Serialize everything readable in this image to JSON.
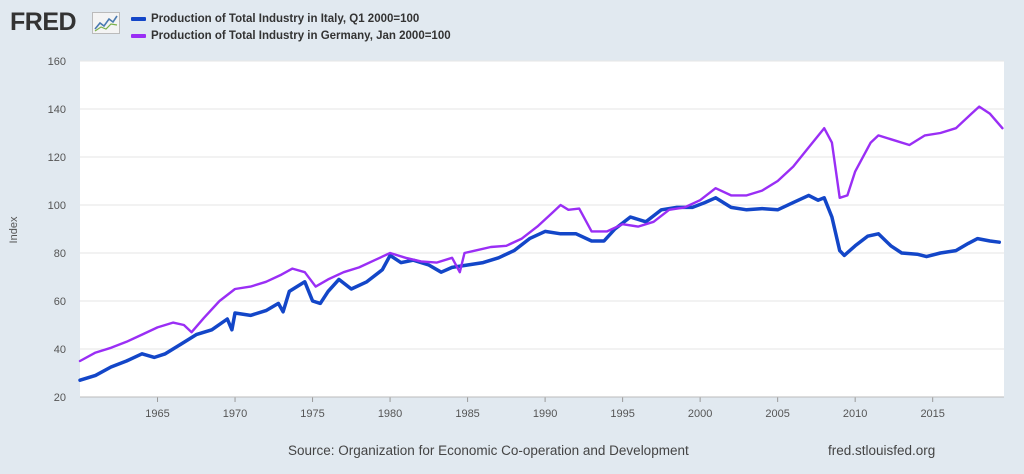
{
  "header": {
    "logo_text": "FRED",
    "logo_icon": "line-chart-icon"
  },
  "footer": {
    "source": "Source: Organization for Economic Co-operation and Development",
    "url": "fred.stlouisfed.org"
  },
  "colors": {
    "italy": "#1346c8",
    "germany": "#9a2ef5",
    "background": "#e1e9f0",
    "plot_bg": "#ffffff"
  },
  "chart_data": {
    "type": "line",
    "title": "",
    "xlabel": "",
    "ylabel": "Index",
    "xlim": [
      1960,
      2019.6
    ],
    "ylim": [
      20,
      160
    ],
    "y_ticks": [
      20,
      40,
      60,
      80,
      100,
      120,
      140,
      160
    ],
    "x_ticks": [
      1965,
      1970,
      1975,
      1980,
      1985,
      1990,
      1995,
      2000,
      2005,
      2010,
      2015
    ],
    "grid": "horizontal",
    "legend": "top-left",
    "series": [
      {
        "name": "Production of Total Industry in Italy, Q1 2000=100",
        "color": "#1346c8",
        "points": [
          [
            1960.0,
            27
          ],
          [
            1961.0,
            29
          ],
          [
            1962.0,
            32.5
          ],
          [
            1963.0,
            35
          ],
          [
            1964.0,
            38
          ],
          [
            1964.8,
            36.5
          ],
          [
            1965.5,
            38
          ],
          [
            1966.5,
            42
          ],
          [
            1967.5,
            46
          ],
          [
            1968.5,
            48
          ],
          [
            1969.5,
            52.5
          ],
          [
            1969.8,
            48
          ],
          [
            1970.0,
            55
          ],
          [
            1971.0,
            54
          ],
          [
            1972.0,
            56
          ],
          [
            1972.8,
            59
          ],
          [
            1973.1,
            55.5
          ],
          [
            1973.5,
            64
          ],
          [
            1974.5,
            68
          ],
          [
            1975.0,
            60
          ],
          [
            1975.5,
            59
          ],
          [
            1976.0,
            64
          ],
          [
            1976.7,
            69
          ],
          [
            1977.5,
            65
          ],
          [
            1978.5,
            68
          ],
          [
            1979.5,
            73
          ],
          [
            1980.0,
            79
          ],
          [
            1980.7,
            76
          ],
          [
            1981.5,
            77
          ],
          [
            1982.5,
            75
          ],
          [
            1983.3,
            72
          ],
          [
            1984.0,
            74
          ],
          [
            1985.0,
            75
          ],
          [
            1986.0,
            76
          ],
          [
            1987.0,
            78
          ],
          [
            1988.0,
            81
          ],
          [
            1989.0,
            86
          ],
          [
            1990.0,
            89
          ],
          [
            1991.0,
            88
          ],
          [
            1992.0,
            88
          ],
          [
            1993.0,
            85
          ],
          [
            1993.8,
            85
          ],
          [
            1994.5,
            90
          ],
          [
            1995.5,
            95
          ],
          [
            1996.5,
            93
          ],
          [
            1997.5,
            98
          ],
          [
            1998.5,
            99
          ],
          [
            1999.5,
            99
          ],
          [
            2000.3,
            101
          ],
          [
            2001.0,
            103
          ],
          [
            2002.0,
            99
          ],
          [
            2003.0,
            98
          ],
          [
            2004.0,
            98.5
          ],
          [
            2005.0,
            98
          ],
          [
            2006.0,
            101
          ],
          [
            2007.0,
            104
          ],
          [
            2007.6,
            102
          ],
          [
            2008.0,
            103
          ],
          [
            2008.5,
            95
          ],
          [
            2009.0,
            81
          ],
          [
            2009.3,
            79
          ],
          [
            2010.0,
            83
          ],
          [
            2010.8,
            87
          ],
          [
            2011.5,
            88
          ],
          [
            2012.3,
            83
          ],
          [
            2013.0,
            80
          ],
          [
            2014.0,
            79.5
          ],
          [
            2014.6,
            78.5
          ],
          [
            2015.5,
            80
          ],
          [
            2016.5,
            81
          ],
          [
            2017.3,
            84
          ],
          [
            2017.9,
            86
          ],
          [
            2018.7,
            85
          ],
          [
            2019.3,
            84.5
          ]
        ]
      },
      {
        "name": "Production of Total Industry in Germany, Jan 2000=100",
        "color": "#9a2ef5",
        "points": [
          [
            1960.0,
            35
          ],
          [
            1961.0,
            38.5
          ],
          [
            1962.0,
            40.5
          ],
          [
            1963.0,
            43
          ],
          [
            1964.0,
            46
          ],
          [
            1965.0,
            49
          ],
          [
            1966.0,
            51
          ],
          [
            1966.7,
            50
          ],
          [
            1967.2,
            47
          ],
          [
            1968.0,
            53
          ],
          [
            1969.0,
            60
          ],
          [
            1970.0,
            65
          ],
          [
            1971.0,
            66
          ],
          [
            1972.0,
            68
          ],
          [
            1973.0,
            71
          ],
          [
            1973.7,
            73.5
          ],
          [
            1974.5,
            72
          ],
          [
            1975.2,
            66
          ],
          [
            1976.0,
            69
          ],
          [
            1977.0,
            72
          ],
          [
            1978.0,
            74
          ],
          [
            1979.0,
            77
          ],
          [
            1980.0,
            80
          ],
          [
            1981.0,
            78
          ],
          [
            1982.0,
            76.5
          ],
          [
            1983.0,
            76
          ],
          [
            1984.0,
            78
          ],
          [
            1984.5,
            72
          ],
          [
            1984.8,
            80
          ],
          [
            1985.5,
            81
          ],
          [
            1986.5,
            82.5
          ],
          [
            1987.5,
            83
          ],
          [
            1988.5,
            86
          ],
          [
            1989.5,
            91
          ],
          [
            1990.5,
            97
          ],
          [
            1991.0,
            100
          ],
          [
            1991.5,
            98
          ],
          [
            1992.2,
            98.5
          ],
          [
            1993.0,
            89
          ],
          [
            1994.0,
            89
          ],
          [
            1995.0,
            92
          ],
          [
            1996.0,
            91
          ],
          [
            1997.0,
            93
          ],
          [
            1998.0,
            98
          ],
          [
            1999.0,
            99
          ],
          [
            2000.0,
            102
          ],
          [
            2001.0,
            107
          ],
          [
            2002.0,
            104
          ],
          [
            2003.0,
            104
          ],
          [
            2004.0,
            106
          ],
          [
            2005.0,
            110
          ],
          [
            2006.0,
            116
          ],
          [
            2007.0,
            124
          ],
          [
            2008.0,
            132
          ],
          [
            2008.5,
            126
          ],
          [
            2009.0,
            103
          ],
          [
            2009.5,
            104
          ],
          [
            2010.0,
            114
          ],
          [
            2011.0,
            126
          ],
          [
            2011.5,
            129
          ],
          [
            2012.5,
            127
          ],
          [
            2013.5,
            125
          ],
          [
            2014.5,
            129
          ],
          [
            2015.5,
            130
          ],
          [
            2016.5,
            132
          ],
          [
            2017.5,
            138
          ],
          [
            2018.0,
            141
          ],
          [
            2018.7,
            138
          ],
          [
            2019.5,
            132
          ]
        ]
      }
    ]
  }
}
